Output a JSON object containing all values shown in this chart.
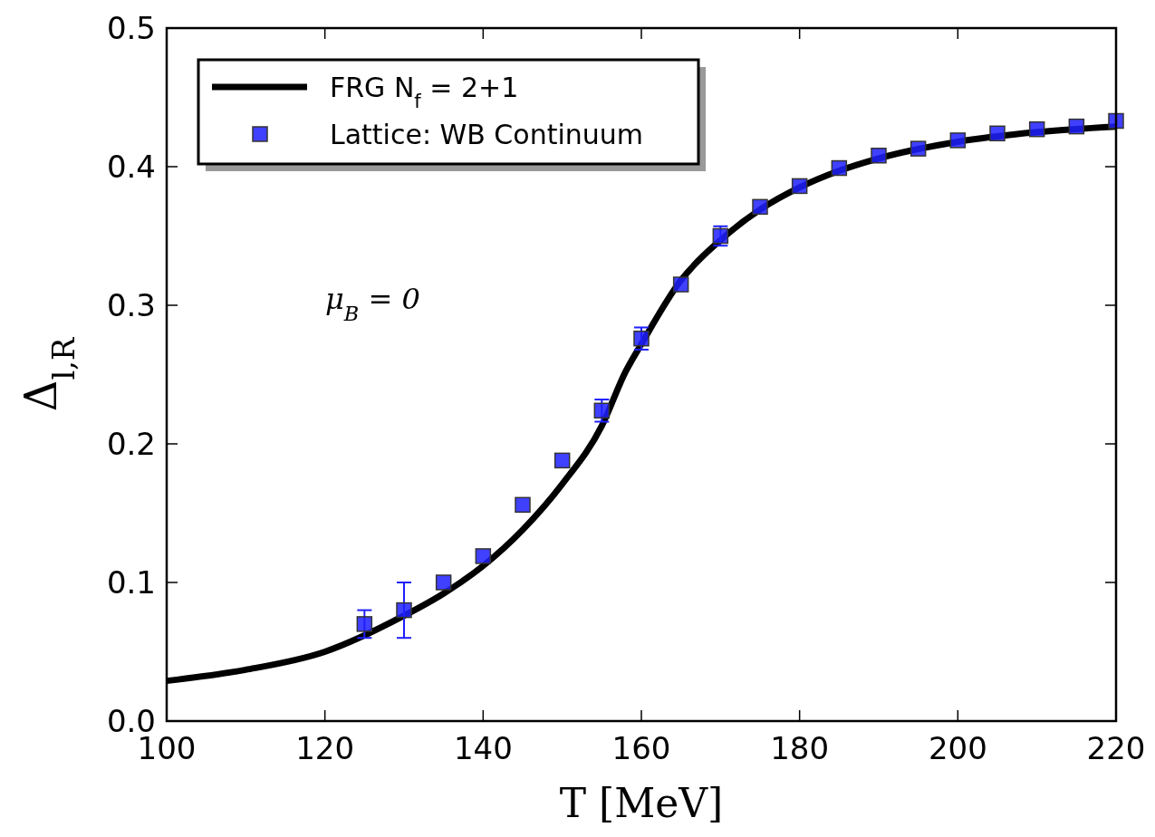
{
  "chart_data": {
    "type": "line",
    "xlabel": "T [MeV]",
    "ylabel": "Δ$_{l,R}$",
    "xlim": [
      100,
      220
    ],
    "ylim": [
      0,
      0.5
    ],
    "xticks": [
      100,
      120,
      140,
      160,
      180,
      200,
      220
    ],
    "yticks": [
      {
        "value": 0,
        "label": "0.0"
      },
      0.1,
      0.2,
      0.3,
      0.4,
      0.5
    ],
    "grid": false,
    "legend": "top left",
    "annotations": [
      "μ$_{B}$ = 0"
    ],
    "series": [
      {
        "name": "FRG N$_{f}$ = 2+1",
        "color": "#000000",
        "x": [
          100,
          110,
          120,
          130,
          135,
          140,
          145,
          150,
          155,
          158,
          160,
          165,
          170,
          175,
          180,
          185,
          190,
          200,
          210,
          220
        ],
        "values": [
          0.029,
          0.037,
          0.05,
          0.076,
          0.092,
          0.112,
          0.138,
          0.171,
          0.213,
          0.252,
          0.272,
          0.318,
          0.347,
          0.369,
          0.385,
          0.397,
          0.406,
          0.418,
          0.425,
          0.429
        ]
      },
      {
        "name": "Lattice: WB Continuum",
        "type": "scatter",
        "color": "#1f1fff",
        "marker": "square",
        "x": [
          125,
          130,
          135,
          140,
          145,
          150,
          155,
          160,
          165,
          170,
          175,
          180,
          185,
          190,
          195,
          200,
          205,
          210,
          215,
          220
        ],
        "values": [
          0.07,
          0.08,
          0.1,
          0.119,
          0.156,
          0.188,
          0.224,
          0.276,
          0.315,
          0.35,
          0.371,
          0.386,
          0.399,
          0.408,
          0.413,
          0.419,
          0.424,
          0.427,
          0.429,
          0.433
        ],
        "errors": [
          0.01,
          0.02,
          null,
          null,
          null,
          null,
          0.008,
          0.008,
          null,
          0.007,
          null,
          null,
          null,
          null,
          null,
          null,
          null,
          null,
          null,
          null
        ]
      }
    ]
  }
}
